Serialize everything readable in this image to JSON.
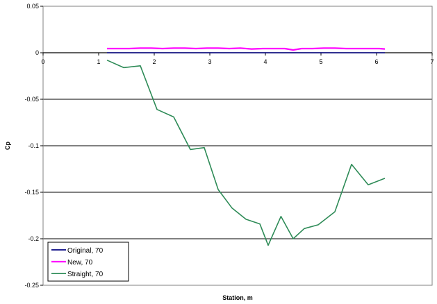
{
  "chart_data": {
    "type": "line",
    "title": "",
    "xlabel": "Station, m",
    "ylabel": "Cp",
    "xlim": [
      0,
      7
    ],
    "ylim": [
      -0.25,
      0.05
    ],
    "x_ticks": [
      "0",
      "1",
      "2",
      "3",
      "4",
      "5",
      "6",
      "7"
    ],
    "y_ticks": [
      "0.05",
      "0",
      "-0.05",
      "-0.1",
      "-0.15",
      "-0.2",
      "-0.25"
    ],
    "grid": "horizontal",
    "legend_position": "bottom-left",
    "series": [
      {
        "name": "Original, 70",
        "color": "#000080",
        "x": [
          1.15,
          6.15
        ],
        "y": [
          0,
          0
        ]
      },
      {
        "name": "New, 70",
        "color": "#ff00ff",
        "x": [
          1.15,
          1.35,
          1.55,
          1.75,
          1.95,
          2.15,
          2.35,
          2.55,
          2.75,
          2.95,
          3.15,
          3.35,
          3.55,
          3.75,
          3.95,
          4.15,
          4.35,
          4.5,
          4.65,
          4.85,
          5.05,
          5.25,
          5.45,
          5.65,
          5.85,
          6.05,
          6.15
        ],
        "y": [
          0.0045,
          0.0045,
          0.0045,
          0.005,
          0.005,
          0.0045,
          0.005,
          0.005,
          0.0045,
          0.005,
          0.005,
          0.0045,
          0.005,
          0.004,
          0.0045,
          0.0045,
          0.0045,
          0.003,
          0.0045,
          0.0045,
          0.005,
          0.005,
          0.0045,
          0.0045,
          0.0045,
          0.0045,
          0.004
        ]
      },
      {
        "name": "Straight, 70",
        "color": "#2e8b57",
        "x": [
          1.15,
          1.45,
          1.75,
          2.05,
          2.35,
          2.65,
          2.9,
          3.15,
          3.4,
          3.65,
          3.9,
          4.05,
          4.28,
          4.5,
          4.7,
          4.95,
          5.25,
          5.55,
          5.85,
          6.15
        ],
        "y": [
          -0.008,
          -0.016,
          -0.014,
          -0.061,
          -0.069,
          -0.104,
          -0.102,
          -0.147,
          -0.167,
          -0.179,
          -0.184,
          -0.207,
          -0.176,
          -0.2,
          -0.189,
          -0.185,
          -0.171,
          -0.12,
          -0.142,
          -0.135
        ]
      }
    ]
  }
}
